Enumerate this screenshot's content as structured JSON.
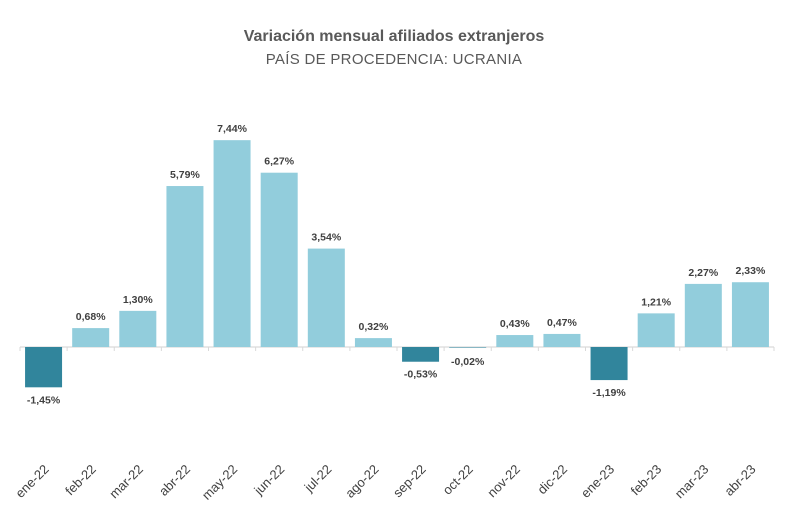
{
  "chart_data": {
    "type": "bar",
    "title": "Variación mensual afiliados extranjeros",
    "subtitle": "PAÍS DE PROCEDENCIA: UCRANIA",
    "categories": [
      "ene-22",
      "feb-22",
      "mar-22",
      "abr-22",
      "may-22",
      "jun-22",
      "jul-22",
      "ago-22",
      "sep-22",
      "oct-22",
      "nov-22",
      "dic-22",
      "ene-23",
      "feb-23",
      "mar-23",
      "abr-23"
    ],
    "values": [
      -1.45,
      0.68,
      1.3,
      5.79,
      7.44,
      6.27,
      3.54,
      0.32,
      -0.53,
      -0.02,
      0.43,
      0.47,
      -1.19,
      1.21,
      2.27,
      2.33
    ],
    "labels": [
      "-1,45%",
      "0,68%",
      "1,30%",
      "5,79%",
      "7,44%",
      "6,27%",
      "3,54%",
      "0,32%",
      "-0,53%",
      "-0,02%",
      "0,43%",
      "0,47%",
      "-1,19%",
      "1,21%",
      "2,27%",
      "2,33%"
    ],
    "ylim": [
      -1.6,
      7.8
    ],
    "grid": false,
    "legend": "none",
    "colors": {
      "positive": "#92cddc",
      "negative": "#31859c",
      "axis": "#d9d9d9"
    }
  }
}
